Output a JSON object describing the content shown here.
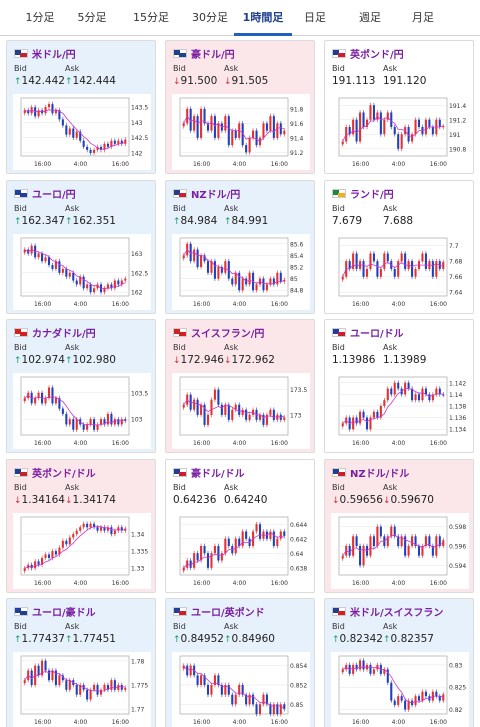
{
  "tabs": [
    {
      "label": "1分足",
      "active": false
    },
    {
      "label": "5分足",
      "active": false
    },
    {
      "label": "15分足",
      "active": false
    },
    {
      "label": "30分足",
      "active": false
    },
    {
      "label": "1時間足",
      "active": true
    },
    {
      "label": "日足",
      "active": false
    },
    {
      "label": "週足",
      "active": false
    },
    {
      "label": "月足",
      "active": false
    }
  ],
  "labels": {
    "bid": "Bid",
    "ask": "Ask"
  },
  "colors": {
    "up_card": "#e6f1fb",
    "down_card": "#fbe7ea",
    "candle_up": "#e53030",
    "candle_down": "#1f3fbf",
    "ma": "#cc33cc"
  },
  "cards": [
    {
      "pair": "米ドル/円",
      "trend": "up",
      "bid": "142.442",
      "ask": "142.444",
      "flag_icon": "us-flag-icon",
      "chart_data": {
        "type": "candlestick",
        "x_ticks": [
          "16:00",
          "4:00",
          "16:00"
        ],
        "y_ticks": [
          "143.5",
          "143",
          "142.5",
          "142"
        ],
        "ylim": [
          141.9,
          143.8
        ],
        "closes": [
          143.4,
          143.3,
          143.5,
          143.2,
          143.4,
          143.3,
          143.5,
          143.6,
          143.3,
          143.4,
          143.1,
          142.9,
          142.6,
          142.8,
          142.5,
          142.7,
          142.4,
          142.2,
          142.1,
          142.0,
          142.1,
          142.2,
          142.1,
          142.3,
          142.2,
          142.4,
          142.3,
          142.4,
          142.3,
          142.44
        ]
      }
    },
    {
      "pair": "豪ドル/円",
      "trend": "down",
      "bid": "91.500",
      "ask": "91.505",
      "flag_icon": "au-flag-icon",
      "chart_data": {
        "type": "candlestick",
        "x_ticks": [
          "16:00",
          "4:00",
          "16:00"
        ],
        "y_ticks": [
          "91.8",
          "91.6",
          "91.4",
          "91.2"
        ],
        "ylim": [
          91.15,
          91.95
        ],
        "closes": [
          91.6,
          91.8,
          91.5,
          91.7,
          91.4,
          91.8,
          91.6,
          91.5,
          91.7,
          91.4,
          91.6,
          91.5,
          91.7,
          91.3,
          91.5,
          91.4,
          91.6,
          91.3,
          91.2,
          91.4,
          91.5,
          91.3,
          91.4,
          91.6,
          91.5,
          91.7,
          91.4,
          91.6,
          91.45,
          91.5
        ]
      }
    },
    {
      "pair": "英ポンド/円",
      "trend": "flat",
      "bid": "191.113",
      "ask": "191.120",
      "flag_icon": "uk-flag-icon",
      "chart_data": {
        "type": "candlestick",
        "x_ticks": [
          "16:00",
          "4:00",
          "16:00"
        ],
        "y_ticks": [
          "191.4",
          "191.2",
          "191",
          "190.8"
        ],
        "ylim": [
          190.7,
          191.5
        ],
        "closes": [
          190.9,
          191.1,
          191.0,
          191.2,
          190.9,
          191.3,
          191.1,
          191.2,
          191.4,
          191.2,
          191.3,
          191.0,
          191.2,
          191.3,
          191.1,
          191.0,
          190.8,
          191.0,
          191.1,
          190.9,
          191.0,
          191.2,
          191.1,
          191.0,
          191.2,
          191.1,
          191.0,
          191.2,
          191.1,
          191.11
        ]
      }
    },
    {
      "pair": "ユーロ/円",
      "trend": "up",
      "bid": "162.347",
      "ask": "162.351",
      "flag_icon": "eu-flag-icon",
      "chart_data": {
        "type": "candlestick",
        "x_ticks": [
          "16:00",
          "4:00",
          "16:00"
        ],
        "y_ticks": [
          "163",
          "162.5",
          "162"
        ],
        "ylim": [
          161.9,
          163.4
        ],
        "closes": [
          163.1,
          163.0,
          163.2,
          162.9,
          163.0,
          162.8,
          162.9,
          162.7,
          162.6,
          162.8,
          162.5,
          162.6,
          162.4,
          162.5,
          162.3,
          162.2,
          162.4,
          162.1,
          162.2,
          162.0,
          162.1,
          162.2,
          162.0,
          162.1,
          162.2,
          162.1,
          162.3,
          162.2,
          162.3,
          162.35
        ]
      }
    },
    {
      "pair": "NZドル/円",
      "trend": "up",
      "bid": "84.984",
      "ask": "84.991",
      "flag_icon": "nz-flag-icon",
      "chart_data": {
        "type": "candlestick",
        "x_ticks": [
          "16:00",
          "4:00",
          "16:00"
        ],
        "y_ticks": [
          "85.6",
          "85.4",
          "85.2",
          "85",
          "84.8"
        ],
        "ylim": [
          84.7,
          85.7
        ],
        "closes": [
          85.4,
          85.6,
          85.3,
          85.5,
          85.2,
          85.4,
          85.3,
          85.1,
          85.3,
          85.0,
          85.2,
          85.1,
          85.3,
          85.0,
          84.9,
          85.1,
          84.8,
          85.0,
          84.9,
          85.1,
          84.8,
          84.9,
          85.0,
          84.8,
          84.9,
          85.0,
          84.9,
          85.1,
          84.95,
          84.98
        ]
      }
    },
    {
      "pair": "ランド/円",
      "trend": "flat",
      "bid": "7.679",
      "ask": "7.688",
      "flag_icon": "za-flag-icon",
      "chart_data": {
        "type": "candlestick",
        "x_ticks": [
          "16:00",
          "4:00",
          "16:00"
        ],
        "y_ticks": [
          "7.7",
          "7.68",
          "7.66",
          "7.64"
        ],
        "ylim": [
          7.635,
          7.71
        ],
        "closes": [
          7.66,
          7.68,
          7.67,
          7.69,
          7.67,
          7.68,
          7.66,
          7.67,
          7.69,
          7.68,
          7.66,
          7.67,
          7.69,
          7.68,
          7.67,
          7.66,
          7.68,
          7.69,
          7.67,
          7.68,
          7.66,
          7.67,
          7.68,
          7.69,
          7.67,
          7.68,
          7.66,
          7.68,
          7.67,
          7.679
        ]
      }
    },
    {
      "pair": "カナダドル/円",
      "trend": "up",
      "bid": "102.974",
      "ask": "102.980",
      "flag_icon": "ca-flag-icon",
      "chart_data": {
        "type": "candlestick",
        "x_ticks": [
          "16:00",
          "4:00",
          "16:00"
        ],
        "y_ticks": [
          "103.5",
          "103"
        ],
        "ylim": [
          102.7,
          103.8
        ],
        "closes": [
          103.4,
          103.5,
          103.3,
          103.4,
          103.5,
          103.3,
          103.4,
          103.6,
          103.3,
          103.4,
          103.2,
          103.1,
          102.9,
          103.0,
          102.8,
          103.0,
          102.9,
          102.8,
          102.9,
          103.0,
          102.8,
          102.9,
          103.0,
          102.9,
          103.1,
          102.9,
          103.0,
          102.9,
          103.0,
          102.97
        ]
      }
    },
    {
      "pair": "スイスフラン/円",
      "trend": "down",
      "bid": "172.946",
      "ask": "172.962",
      "flag_icon": "ch-flag-icon",
      "chart_data": {
        "type": "candlestick",
        "x_ticks": [
          "16:00",
          "4:00",
          "16:00"
        ],
        "y_ticks": [
          "173.5",
          "173"
        ],
        "ylim": [
          172.6,
          173.75
        ],
        "closes": [
          173.2,
          173.4,
          173.1,
          173.3,
          173.0,
          173.2,
          172.8,
          173.0,
          173.3,
          173.5,
          173.2,
          173.0,
          173.2,
          172.9,
          173.1,
          173.2,
          173.0,
          173.1,
          172.9,
          173.0,
          173.1,
          172.9,
          173.0,
          172.8,
          173.0,
          173.1,
          172.9,
          173.0,
          172.9,
          172.95
        ]
      }
    },
    {
      "pair": "ユーロ/ドル",
      "trend": "flat",
      "bid": "1.13986",
      "ask": "1.13989",
      "flag_icon": "eu-us-flag-icon",
      "chart_data": {
        "type": "candlestick",
        "x_ticks": [
          "16:00",
          "4:00",
          "16:00"
        ],
        "y_ticks": [
          "1.142",
          "1.14",
          "1.138",
          "1.136",
          "1.134"
        ],
        "ylim": [
          1.133,
          1.143
        ],
        "closes": [
          1.135,
          1.136,
          1.134,
          1.136,
          1.135,
          1.137,
          1.136,
          1.134,
          1.136,
          1.137,
          1.136,
          1.138,
          1.139,
          1.141,
          1.14,
          1.142,
          1.141,
          1.14,
          1.142,
          1.141,
          1.139,
          1.14,
          1.139,
          1.141,
          1.14,
          1.139,
          1.14,
          1.141,
          1.14,
          1.1399
        ]
      }
    },
    {
      "pair": "英ポンド/ドル",
      "trend": "down",
      "bid": "1.34164",
      "ask": "1.34174",
      "flag_icon": "uk-us-flag-icon",
      "chart_data": {
        "type": "candlestick",
        "x_ticks": [
          "16:00",
          "4:00",
          "16:00"
        ],
        "y_ticks": [
          "1.34",
          "1.335",
          "1.33"
        ],
        "ylim": [
          1.328,
          1.345
        ],
        "closes": [
          1.33,
          1.331,
          1.33,
          1.332,
          1.331,
          1.333,
          1.334,
          1.333,
          1.335,
          1.334,
          1.336,
          1.338,
          1.337,
          1.339,
          1.34,
          1.341,
          1.342,
          1.343,
          1.342,
          1.343,
          1.342,
          1.341,
          1.342,
          1.341,
          1.342,
          1.34,
          1.341,
          1.342,
          1.341,
          1.3416
        ]
      }
    },
    {
      "pair": "豪ドル/ドル",
      "trend": "flat",
      "bid": "0.64236",
      "ask": "0.64240",
      "flag_icon": "au-us-flag-icon",
      "chart_data": {
        "type": "candlestick",
        "x_ticks": [
          "16:00",
          "4:00",
          "16:00"
        ],
        "y_ticks": [
          "0.644",
          "0.642",
          "0.64",
          "0.638"
        ],
        "ylim": [
          0.637,
          0.645
        ],
        "closes": [
          0.638,
          0.639,
          0.638,
          0.64,
          0.639,
          0.641,
          0.64,
          0.638,
          0.64,
          0.641,
          0.639,
          0.64,
          0.642,
          0.641,
          0.64,
          0.642,
          0.641,
          0.643,
          0.642,
          0.641,
          0.643,
          0.644,
          0.642,
          0.643,
          0.642,
          0.643,
          0.641,
          0.642,
          0.643,
          0.6424
        ]
      }
    },
    {
      "pair": "NZドル/ドル",
      "trend": "down",
      "bid": "0.59656",
      "ask": "0.59670",
      "flag_icon": "nz-us-flag-icon",
      "chart_data": {
        "type": "candlestick",
        "x_ticks": [
          "16:00",
          "4:00",
          "16:00"
        ],
        "y_ticks": [
          "0.598",
          "0.596",
          "0.594"
        ],
        "ylim": [
          0.593,
          0.599
        ],
        "closes": [
          0.595,
          0.596,
          0.595,
          0.597,
          0.596,
          0.594,
          0.596,
          0.595,
          0.597,
          0.596,
          0.598,
          0.597,
          0.596,
          0.597,
          0.598,
          0.597,
          0.596,
          0.597,
          0.595,
          0.596,
          0.597,
          0.596,
          0.595,
          0.596,
          0.597,
          0.596,
          0.595,
          0.597,
          0.596,
          0.5966
        ]
      }
    },
    {
      "pair": "ユーロ/豪ドル",
      "trend": "up",
      "bid": "1.77437",
      "ask": "1.77451",
      "flag_icon": "eu-au-flag-icon",
      "chart_data": {
        "type": "candlestick",
        "x_ticks": [
          "16:00",
          "4:00",
          "16:00"
        ],
        "y_ticks": [
          "1.78",
          "1.775",
          "1.77"
        ],
        "ylim": [
          1.769,
          1.781
        ],
        "closes": [
          1.776,
          1.778,
          1.775,
          1.779,
          1.777,
          1.78,
          1.778,
          1.776,
          1.778,
          1.775,
          1.777,
          1.776,
          1.774,
          1.776,
          1.775,
          1.773,
          1.775,
          1.774,
          1.772,
          1.774,
          1.775,
          1.773,
          1.774,
          1.775,
          1.774,
          1.776,
          1.774,
          1.775,
          1.774,
          1.7744
        ]
      }
    },
    {
      "pair": "ユーロ/英ポンド",
      "trend": "up",
      "bid": "0.84952",
      "ask": "0.84960",
      "flag_icon": "eu-uk-flag-icon",
      "chart_data": {
        "type": "candlestick",
        "x_ticks": [
          "16:00",
          "4:00",
          "16:00"
        ],
        "y_ticks": [
          "0.854",
          "0.852",
          "0.85"
        ],
        "ylim": [
          0.849,
          0.855
        ],
        "closes": [
          0.854,
          0.853,
          0.854,
          0.853,
          0.852,
          0.853,
          0.852,
          0.851,
          0.852,
          0.853,
          0.852,
          0.851,
          0.852,
          0.851,
          0.85,
          0.851,
          0.852,
          0.851,
          0.85,
          0.851,
          0.85,
          0.849,
          0.85,
          0.851,
          0.85,
          0.849,
          0.85,
          0.849,
          0.85,
          0.8495
        ]
      }
    },
    {
      "pair": "米ドル/スイスフラン",
      "trend": "up",
      "bid": "0.82342",
      "ask": "0.82357",
      "flag_icon": "us-ch-flag-icon",
      "chart_data": {
        "type": "candlestick",
        "x_ticks": [
          "16:00",
          "4:00",
          "16:00"
        ],
        "y_ticks": [
          "0.83",
          "0.825",
          "0.82"
        ],
        "ylim": [
          0.819,
          0.832
        ],
        "closes": [
          0.829,
          0.83,
          0.828,
          0.83,
          0.829,
          0.831,
          0.829,
          0.83,
          0.828,
          0.829,
          0.83,
          0.828,
          0.829,
          0.826,
          0.822,
          0.821,
          0.823,
          0.822,
          0.82,
          0.822,
          0.821,
          0.823,
          0.822,
          0.824,
          0.823,
          0.822,
          0.824,
          0.823,
          0.822,
          0.8234
        ]
      }
    }
  ]
}
